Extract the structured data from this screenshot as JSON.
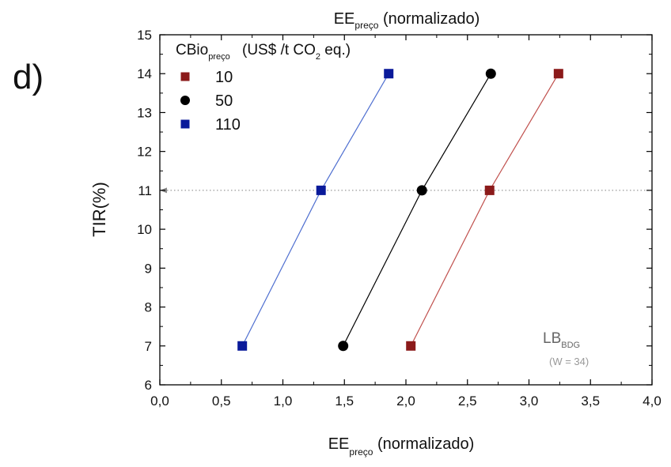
{
  "panel_label": "d)",
  "chart_data": {
    "type": "scatter",
    "title": {
      "main": "EE",
      "sub": "preço",
      "suffix": " (normalizado)"
    },
    "xlabel": {
      "main": "EE",
      "sub": "preço",
      "suffix": " (normalizado)"
    },
    "ylabel": "TIR(%)",
    "xlim": [
      0.0,
      4.0
    ],
    "ylim": [
      6,
      15
    ],
    "x_ticks": [
      0.0,
      0.5,
      1.0,
      1.5,
      2.0,
      2.5,
      3.0,
      3.5,
      4.0
    ],
    "x_tick_labels": [
      "0,0",
      "0,5",
      "1,0",
      "1,5",
      "2,0",
      "2,5",
      "3,0",
      "3,5",
      "4,0"
    ],
    "y_ticks": [
      6,
      7,
      8,
      9,
      10,
      11,
      12,
      13,
      14,
      15
    ],
    "y_tick_labels": [
      "6",
      "7",
      "8",
      "9",
      "10",
      "11",
      "12",
      "13",
      "14",
      "15"
    ],
    "grid": false,
    "legend": {
      "placement": "top-left",
      "title": {
        "main": "CBio",
        "sub": "preço",
        "unit_a": "(US$  /t CO",
        "unit_sub": "2",
        "unit_b": " eq.)"
      }
    },
    "reference_line": {
      "y": 11,
      "style": "dotted",
      "color": "#999999"
    },
    "annotation": {
      "main": "LB",
      "sub": "BDG",
      "note": "(W = 34)"
    },
    "series": [
      {
        "name": "10",
        "marker": "square",
        "color": "#8b1a1a",
        "line_color": "#c0504d",
        "x": [
          2.04,
          2.68,
          3.24
        ],
        "y": [
          7,
          11,
          14
        ]
      },
      {
        "name": "50",
        "marker": "circle",
        "color": "#000000",
        "line_color": "#000000",
        "x": [
          1.49,
          2.13,
          2.69
        ],
        "y": [
          7,
          11,
          14
        ]
      },
      {
        "name": "110",
        "marker": "square",
        "color": "#0a1a9a",
        "line_color": "#4f6fd0",
        "x": [
          0.67,
          1.31,
          1.86
        ],
        "y": [
          7,
          11,
          14
        ]
      }
    ]
  }
}
